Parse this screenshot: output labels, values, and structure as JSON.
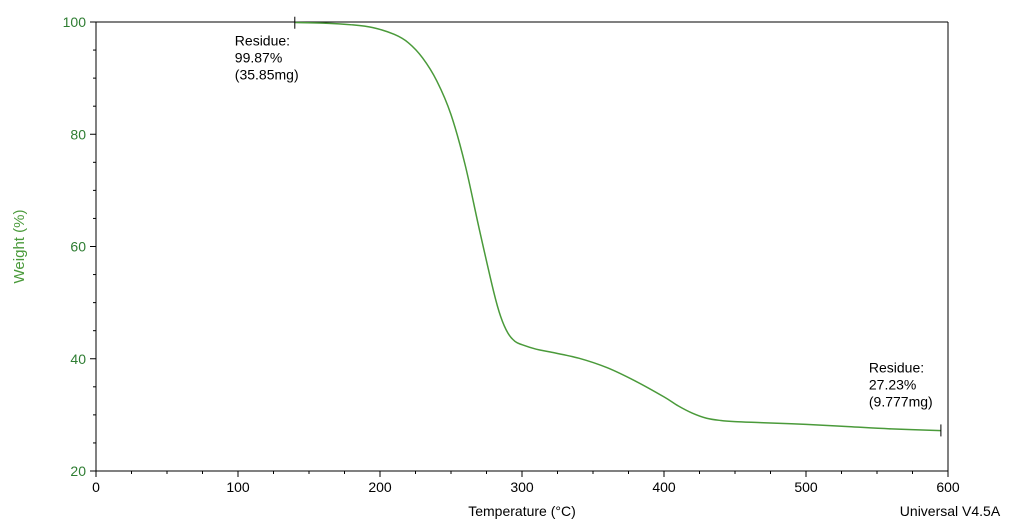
{
  "chart_data": {
    "type": "line",
    "xlabel": "Temperature (°C)",
    "ylabel": "Weight (%)",
    "xlim": [
      0,
      600
    ],
    "ylim": [
      20,
      100
    ],
    "x_ticks": [
      "0",
      "100",
      "200",
      "300",
      "400",
      "500",
      "600"
    ],
    "y_ticks": [
      "20",
      "40",
      "60",
      "80",
      "100"
    ],
    "grid": false,
    "series": [
      {
        "x": [
          140,
          160,
          180,
          195,
          210,
          220,
          230,
          240,
          250,
          260,
          270,
          280,
          285,
          290,
          295,
          300,
          310,
          320,
          340,
          360,
          380,
          400,
          410,
          420,
          430,
          440,
          450,
          470,
          500,
          530,
          560,
          595
        ],
        "y": [
          99.9,
          99.8,
          99.5,
          99.0,
          97.8,
          96.3,
          93.6,
          89.5,
          83.5,
          74.5,
          63.0,
          52.0,
          47.5,
          44.6,
          43.1,
          42.5,
          41.7,
          41.2,
          40.1,
          38.4,
          36.0,
          33.2,
          31.6,
          30.3,
          29.4,
          29.0,
          28.8,
          28.6,
          28.3,
          27.9,
          27.5,
          27.2
        ],
        "color": "#4a9a3a"
      }
    ],
    "annotations": [
      {
        "lines": [
          "Residue:",
          "99.87%",
          "(35.85mg)"
        ],
        "x": 140,
        "y": 99.87
      },
      {
        "lines": [
          "Residue:",
          "27.23%",
          "(9.777mg)"
        ],
        "x": 595,
        "y": 27.23
      }
    ]
  },
  "footer": "Universal V4.5A"
}
